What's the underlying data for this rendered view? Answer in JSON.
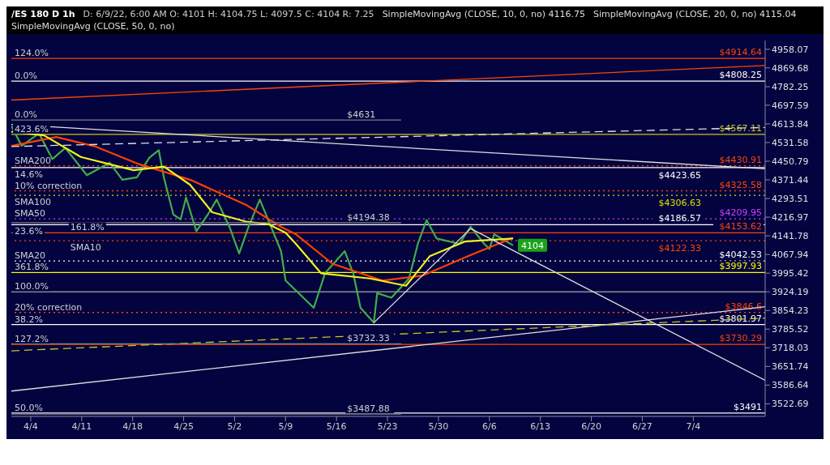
{
  "chart_data": {
    "type": "line",
    "title": "/ES 180 D 1h",
    "subtitle": "D: 6/9/22, 6:00 AM  O: 4101  H: 4104.75  L: 4097.5  C: 4104  R: 7.25",
    "log": true,
    "grid": false,
    "legend": false,
    "marker": "none",
    "line_style": "solid",
    "xlim": [
      "--04-01T08:00",
      "--07-13T21:00"
    ],
    "xticks": [
      {
        "value": "--04-04",
        "label": "4/4"
      },
      {
        "value": "--04-11",
        "label": "4/11"
      },
      {
        "value": "--04-18",
        "label": "4/18"
      },
      {
        "value": "--04-25",
        "label": "4/25"
      },
      {
        "value": "--05-02",
        "label": "5/2"
      },
      {
        "value": "--05-09",
        "label": "5/9"
      },
      {
        "value": "--05-16",
        "label": "5/16"
      },
      {
        "value": "--05-23",
        "label": "5/23"
      },
      {
        "value": "--05-30",
        "label": "5/30"
      },
      {
        "value": "--06-06",
        "label": "6/6"
      },
      {
        "value": "--06-13",
        "label": "6/13"
      },
      {
        "value": "--06-20",
        "label": "6/20"
      },
      {
        "value": "--06-27",
        "label": "6/27"
      },
      {
        "value": "--07-04",
        "label": "7/4"
      }
    ],
    "ylim": [
      3480,
      5000
    ],
    "yticks": [
      4958.07,
      4869.68,
      4782.25,
      4697.59,
      4613.84,
      4531.58,
      4450.79,
      4371.44,
      4293.51,
      4216.97,
      4141.78,
      4067.94,
      3995.42,
      3924.19,
      3854.23,
      3785.52,
      3718.03,
      3651.74,
      3586.64,
      3522.69
    ],
    "series": [
      {
        "color": "#3fae49",
        "x": [
          "--04-01T08:00",
          "--04-02T18:00",
          "--04-05T03:00",
          "--04-06T23:00",
          "--04-08T18:00",
          "--04-11T17:00",
          "--04-14T20:00",
          "--04-16T14:00",
          "--04-18T14:00",
          "--04-20T07:00",
          "--04-21T14:00",
          "--04-22T07:00",
          "--04-23T14:00",
          "--04-24T14:00",
          "--04-25T08:00",
          "--04-26T18:00",
          "--04-28T08:00",
          "--04-29T13:00",
          "--05-01T07:00",
          "--05-02T15:00",
          "--05-03T22:00",
          "--05-05T11:00",
          "--05-06T14:00",
          "--05-08T09:00",
          "--05-09T00:00",
          "--05-12T21:00",
          "--05-14T10:00",
          "--05-17T03:00",
          "--05-18T07:00",
          "--05-19T07:00",
          "--05-21T03:00",
          "--05-21T14:00",
          "--05-23T13:00",
          "--05-25T23:00",
          "--05-27T04:00",
          "--05-28T09:00",
          "--05-29T18:00",
          "--06-01T21:00",
          "--06-03T10:00",
          "--06-05T07:00",
          "--06-06T00:00",
          "--06-06T16:00",
          "--06-09T06:00"
        ],
        "values": [
          4605,
          4517,
          4572,
          4460,
          4508,
          4391,
          4444,
          4372,
          4382,
          4466,
          4498,
          4381,
          4228,
          4208,
          4298,
          4160,
          4228,
          4289,
          4178,
          4072,
          4178,
          4289,
          4208,
          4081,
          3967,
          3864,
          3995,
          4081,
          3995,
          3864,
          3809,
          3919,
          3902,
          3975,
          4110,
          4205,
          4131,
          4110,
          4178,
          4110,
          4090,
          4148,
          4104
        ]
      },
      {
        "color": "#ff4000",
        "x": [
          "--04-01T08:00",
          "--04-07T12:00",
          "--04-12T22:00",
          "--04-18T21:00",
          "--04-25T21:00",
          "--05-03T13:00",
          "--05-08T09:00",
          "--05-10T10:00",
          "--05-15T10:00",
          "--05-22T07:00",
          "--05-27T19:00",
          "--06-03T01:00",
          "--06-09T06:00"
        ],
        "values": [
          4517,
          4556,
          4514,
          4438,
          4372,
          4268,
          4178,
          4148,
          4032,
          3967,
          3986,
          4061,
          4134
        ]
      },
      {
        "color": "#f0f020",
        "x": [
          "--04-01T08:00",
          "--04-05T20:00",
          "--04-10T21:00",
          "--04-18T03:00",
          "--04-22T07:00",
          "--04-25T21:00",
          "--04-28T22:00",
          "--05-03T13:00",
          "--05-06T14:00",
          "--05-09T00:00",
          "--05-10T10:00",
          "--05-13T21:00",
          "--05-20T14:00",
          "--05-25T13:00",
          "--05-28T19:00",
          "--06-02T15:00",
          "--06-09T06:00"
        ],
        "values": [
          4579,
          4563,
          4469,
          4412,
          4428,
          4351,
          4237,
          4199,
          4189,
          4154,
          4110,
          3995,
          3975,
          3947,
          4061,
          4119,
          4131
        ]
      },
      {
        "color": "#ff4500",
        "x": [
          "--04-01T08:00",
          "--07-13T21:00"
        ],
        "values": [
          4721,
          4881
        ]
      },
      {
        "color": "#e0e0e0",
        "x": [
          "--04-01T08:00",
          "--07-13T21:00"
        ],
        "values": [
          4611,
          4418
        ]
      },
      {
        "color": "#e0e0e0",
        "x": [
          "--04-01T08:00",
          "--07-13T21:00"
        ],
        "values": [
          3566,
          3868
        ]
      },
      {
        "color": "#e0e0e0",
        "x": [
          "--05-21T03:00",
          "--06-03T10:00"
        ],
        "values": [
          3809,
          4171
        ]
      },
      {
        "color": "#e0e0e0",
        "x": [
          "--06-03T10:00",
          "--07-13T21:00"
        ],
        "values": [
          4171,
          3603
        ]
      },
      {
        "color": "#c8c820",
        "x": [
          "--04-01T08:00",
          "--07-13T21:00"
        ],
        "values": [
          3707,
          3826
        ],
        "line_style": "dashed"
      },
      {
        "color": "#e0e0e0",
        "x": [
          "--04-01T08:00",
          "--07-13T21:00"
        ],
        "values": [
          4514,
          4598
        ],
        "line_style": "dashed"
      },
      {
        "color": "#808080",
        "x": [
          "--04-01T08:00",
          "--05-24T21:00"
        ],
        "values": [
          4631,
          4631
        ]
      },
      {
        "color": "#808080",
        "x": [
          "--04-01T08:00",
          "--05-24T21:00"
        ],
        "values": [
          4194.38,
          4194.38
        ]
      },
      {
        "color": "#808080",
        "x": [
          "--04-01T08:00",
          "--05-24T21:00"
        ],
        "values": [
          3732.33,
          3732.33
        ]
      },
      {
        "color": "#808080",
        "x": [
          "--04-01T08:00",
          "--05-24T21:00"
        ],
        "values": [
          3487.88,
          3487.88
        ]
      }
    ],
    "ref_lines": [
      {
        "axis": "y",
        "value": 4914.64,
        "label": "$4914.64",
        "color": "#ff4500",
        "line_style": "solid"
      },
      {
        "axis": "y",
        "value": 4808.25,
        "label": "$4808.25",
        "color": "#ffffff",
        "line_style": "solid"
      },
      {
        "axis": "y",
        "value": 4567.11,
        "label": "$4567.11",
        "color": "#c8c820",
        "line_style": "solid"
      },
      {
        "axis": "y",
        "value": 4430.91,
        "label": "$4430.91",
        "color": "#ff4500",
        "line_style": "dotted"
      },
      {
        "axis": "y",
        "value": 4423.65,
        "label": "$4423.65",
        "color": "#ffffff",
        "line_style": "solid"
      },
      {
        "axis": "y",
        "value": 4325.58,
        "label": "$4325.58",
        "color": "#ff4500",
        "line_style": "dotted"
      },
      {
        "axis": "y",
        "value": 4306.63,
        "label": "$4306.63",
        "color": "#e0e000",
        "line_style": "dotted"
      },
      {
        "axis": "y",
        "value": 4209.95,
        "label": "$4209.95",
        "color": "#d040ff",
        "line_style": "dotted"
      },
      {
        "axis": "y",
        "value": 4186.57,
        "label": "$4186.57",
        "color": "#ffffff",
        "line_style": "solid"
      },
      {
        "axis": "y",
        "value": 4153.62,
        "label": "$4153.62",
        "color": "#ff4500",
        "line_style": "solid"
      },
      {
        "axis": "y",
        "value": 4122.33,
        "label": "$4122.33",
        "color": "#ff4500",
        "line_style": "dotted"
      },
      {
        "axis": "y",
        "value": 4042.53,
        "label": "$4042.53",
        "color": "#ffffff",
        "line_style": "dotted"
      },
      {
        "axis": "y",
        "value": 3997.93,
        "label": "$3997.93",
        "color": "#ffff00",
        "line_style": "solid"
      },
      {
        "axis": "y",
        "value": 3924,
        "label": null,
        "color": "#909090",
        "line_style": "solid"
      },
      {
        "axis": "y",
        "value": 3846.6,
        "label": "$3846.6",
        "color": "#ff4500",
        "line_style": "dotted"
      },
      {
        "axis": "y",
        "value": 3801.97,
        "label": "$3801.97",
        "color": "#ffffff",
        "line_style": "solid"
      },
      {
        "axis": "y",
        "value": 3730.29,
        "label": "$3730.29",
        "color": "#ff4500",
        "line_style": "solid"
      },
      {
        "axis": "y",
        "value": 3491,
        "label": "$3491",
        "color": "#ffffff",
        "line_style": "solid"
      }
    ],
    "annotations": [
      "SimpleMovingAvg (CLOSE, 10, 0, no) 4116.75",
      "SimpleMovingAvg (CLOSE, 20, 0, no) 4115.04",
      "SimpleMovingAvg (CLOSE, 50, 0, no)",
      {
        "text": "124.0%",
        "x": "--04-01T08:00",
        "y": 4914.64
      },
      {
        "text": "0.0%",
        "x": "--04-01T08:00",
        "y": 4808.25
      },
      {
        "text": "0.0%",
        "x": "--04-01T08:00",
        "y": 4631
      },
      {
        "text": "423.6%",
        "x": "--04-01T08:00",
        "y": 4567.11
      },
      {
        "text": "SMA200",
        "x": "--04-01T08:00",
        "y": 4430.91
      },
      {
        "text": "14.6%",
        "x": "--04-01T08:00",
        "y": 4423.65
      },
      {
        "text": "10% correction",
        "x": "--04-01T08:00",
        "y": 4325.58
      },
      {
        "text": "SMA100",
        "x": "--04-01T08:00",
        "y": 4306.63
      },
      {
        "text": "SMA50",
        "x": "--04-01T08:00",
        "y": 4209.95
      },
      {
        "text": "23.6%",
        "x": "--04-01T08:00",
        "y": 4186.57
      },
      {
        "text": "161.8%",
        "x": "--04-09T00:00",
        "y": 4153.62
      },
      {
        "text": "SMA10",
        "x": "--04-09T00:00",
        "y": 4122.33
      },
      {
        "text": "SMA20",
        "x": "--04-01T08:00",
        "y": 4042.53
      },
      {
        "text": "361.8%",
        "x": "--04-01T08:00",
        "y": 3997.93
      },
      {
        "text": "100.0%",
        "x": "--04-01T08:00",
        "y": 3924
      },
      {
        "text": "20% correction",
        "x": "--04-01T08:00",
        "y": 3846.6
      },
      {
        "text": "38.2%",
        "x": "--04-01T08:00",
        "y": 3801.97
      },
      {
        "text": "127.2%",
        "x": "--04-01T08:00",
        "y": 3730.29
      },
      {
        "text": "50.0%",
        "x": "--04-01T08:00",
        "y": 3491
      },
      {
        "text": "$4631",
        "x": "--05-17T00:00",
        "y": 4631
      },
      {
        "text": "$4194.38",
        "x": "--05-17T00:00",
        "y": 4194.38
      },
      {
        "text": "$3732.33",
        "x": "--05-17T00:00",
        "y": 3732.33
      },
      {
        "text": "$3487.88",
        "x": "--05-17T00:00",
        "y": 3487.88
      },
      {
        "text": "4104",
        "x": "--06-09T06:00",
        "y": 4104
      }
    ]
  }
}
